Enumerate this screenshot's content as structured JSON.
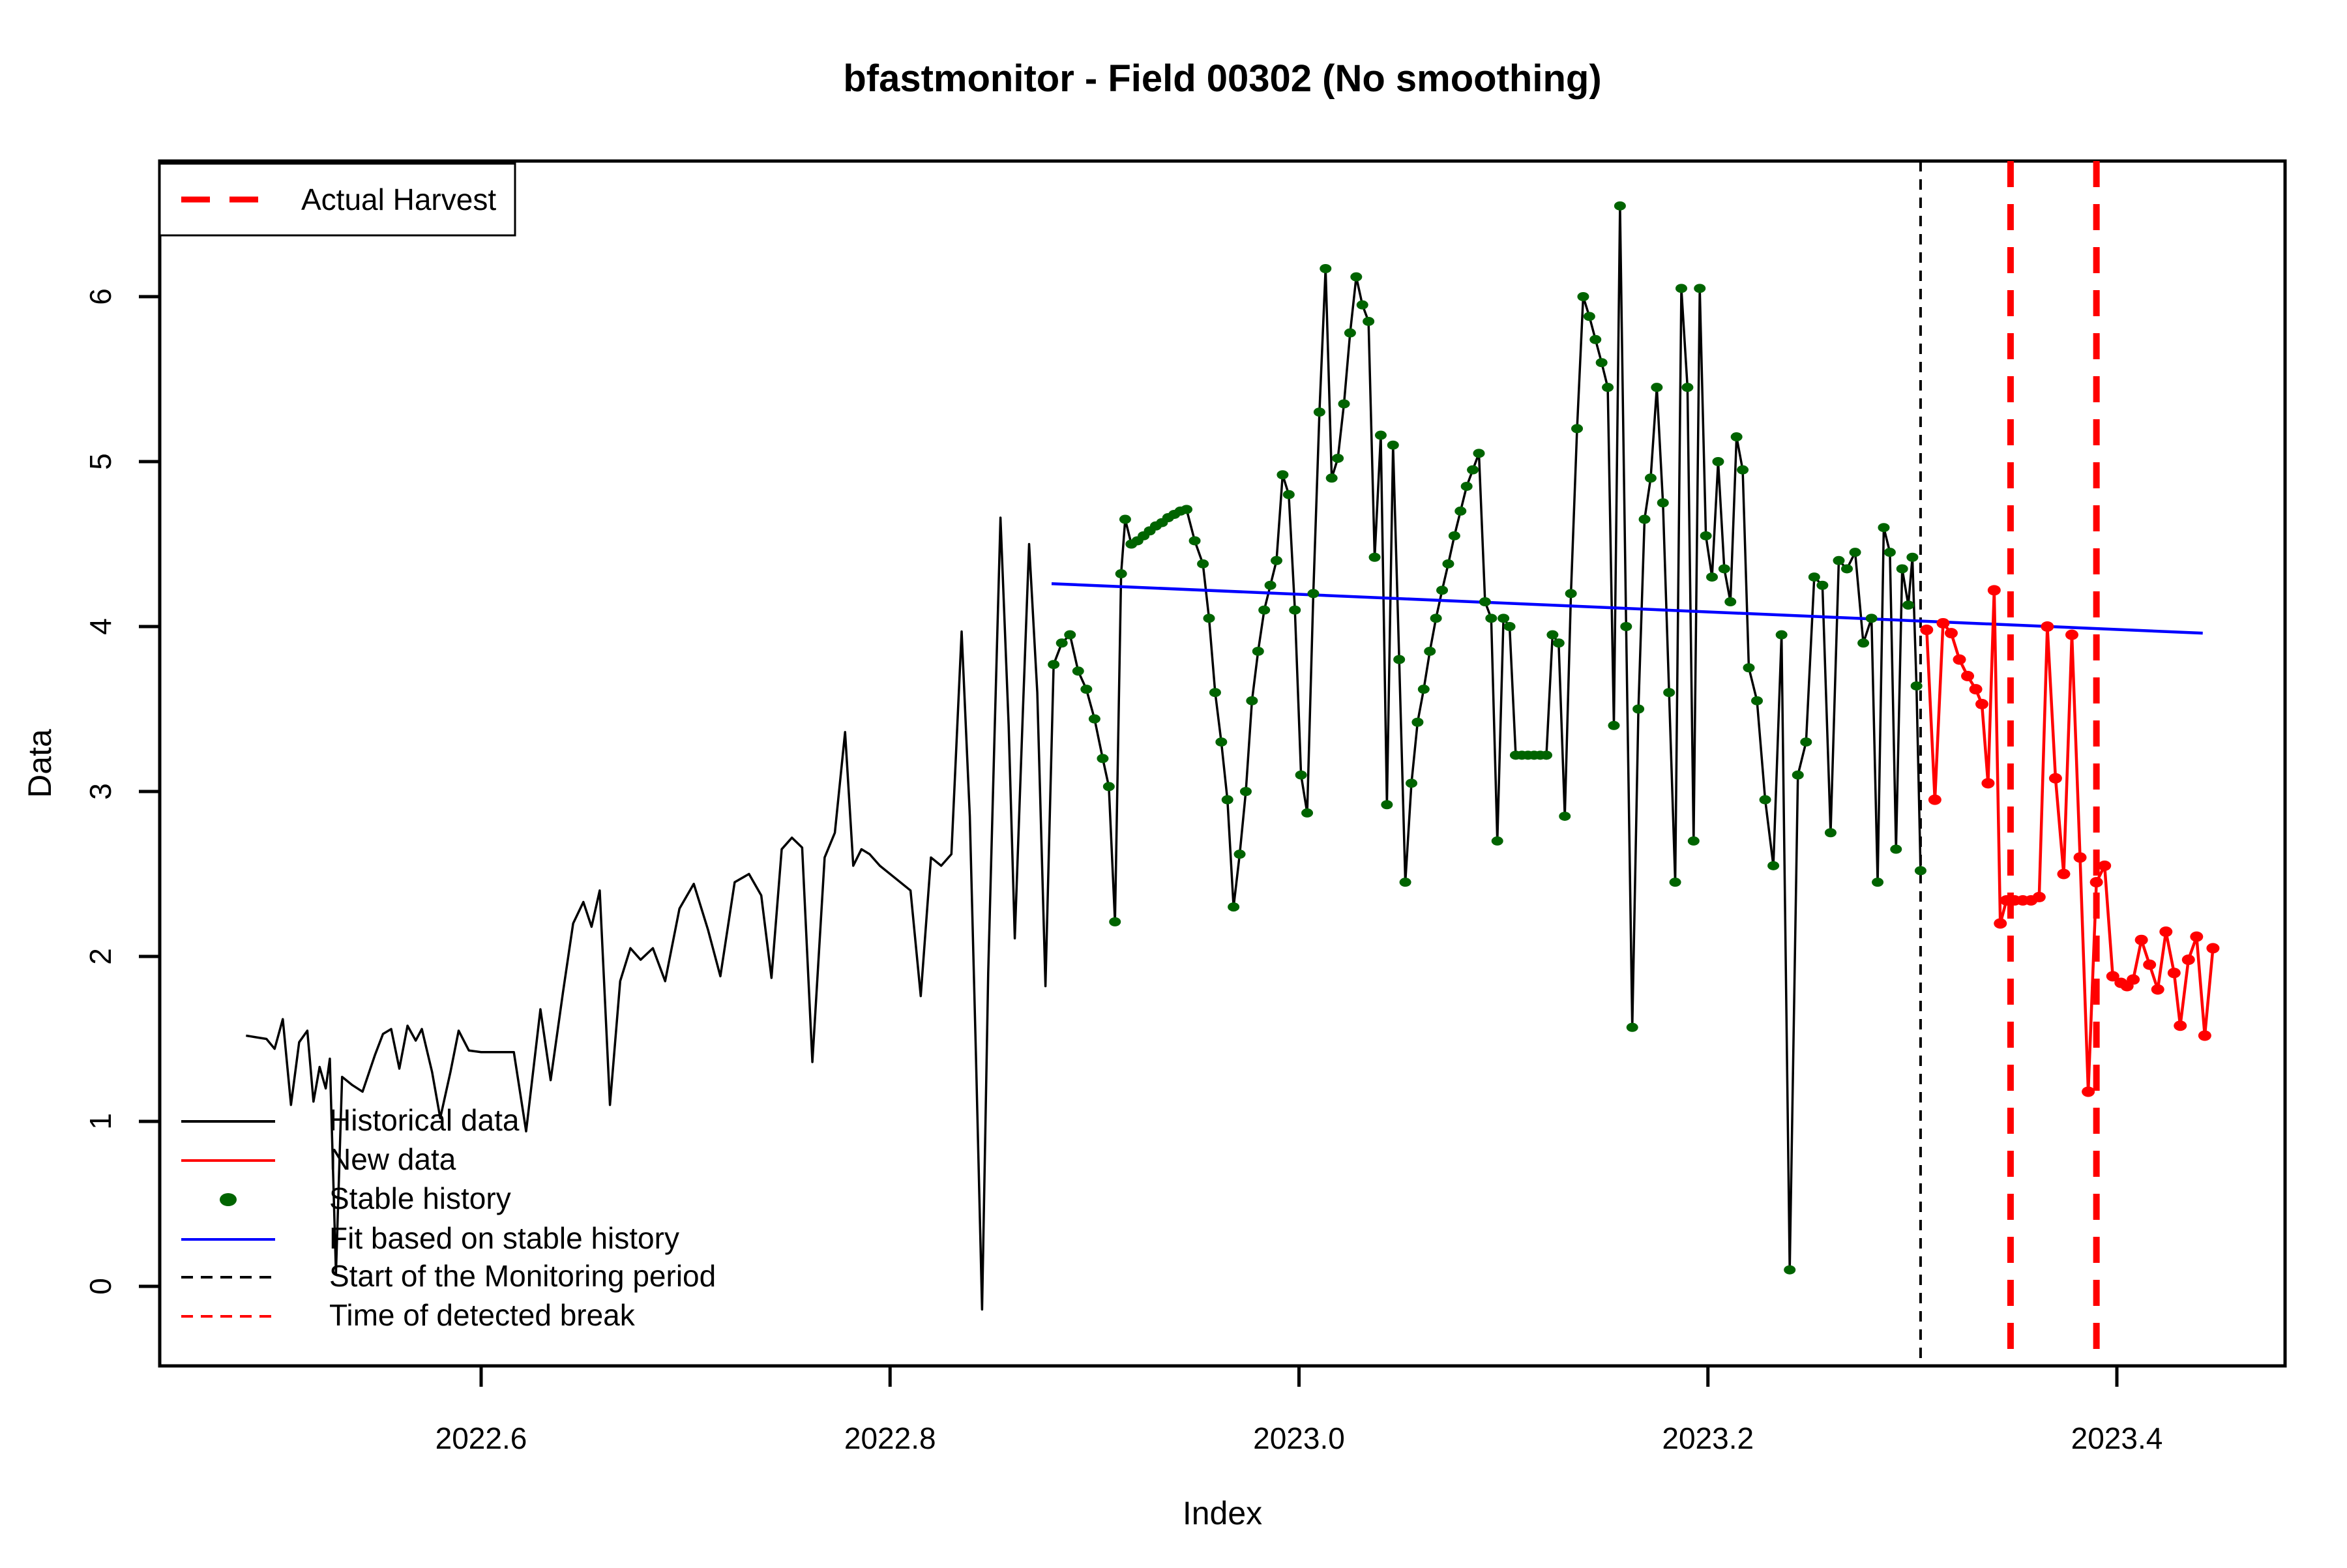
{
  "chart_data": {
    "type": "line",
    "title": "bfastmonitor - Field 00302 (No smoothing)",
    "xlabel": "Index",
    "ylabel": "Data",
    "xlim": [
      2022.443,
      2023.482
    ],
    "ylim": [
      -0.48,
      6.82
    ],
    "x_ticks": {
      "values": [
        2022.6,
        2022.8,
        2023.0,
        2023.2,
        2023.4
      ],
      "labels": [
        "2022.6",
        "2022.8",
        "2023.0",
        "2023.2",
        "2023.4"
      ]
    },
    "y_ticks": {
      "values": [
        0,
        1,
        2,
        3,
        4,
        5,
        6
      ],
      "labels": [
        "0",
        "1",
        "2",
        "3",
        "4",
        "5",
        "6"
      ]
    },
    "grid": "off",
    "colors": {
      "historical": "#000000",
      "new_data": "#FF0000",
      "stable_history": "#006400",
      "fit": "#0000FF",
      "monitor_start": "#000000",
      "detected_break": "#FF0000"
    },
    "stable_history_start_x": 2022.879,
    "monitor_start_x": 2023.304,
    "harvest_lines_x": [
      2023.348,
      2023.39
    ],
    "fit_line": {
      "x": [
        2022.879,
        2023.442
      ],
      "y": [
        4.26,
        3.96
      ]
    },
    "series": [
      {
        "name": "Historical data",
        "type": "line",
        "points": [
          [
            2022.485,
            1.52
          ],
          [
            2022.49,
            1.51
          ],
          [
            2022.495,
            1.5
          ],
          [
            2022.499,
            1.44
          ],
          [
            2022.503,
            1.62
          ],
          [
            2022.507,
            1.1
          ],
          [
            2022.511,
            1.48
          ],
          [
            2022.515,
            1.55
          ],
          [
            2022.518,
            1.12
          ],
          [
            2022.521,
            1.33
          ],
          [
            2022.524,
            1.2
          ],
          [
            2022.526,
            1.38
          ],
          [
            2022.529,
            0.08
          ],
          [
            2022.532,
            1.27
          ],
          [
            2022.537,
            1.22
          ],
          [
            2022.542,
            1.18
          ],
          [
            2022.548,
            1.4
          ],
          [
            2022.552,
            1.53
          ],
          [
            2022.556,
            1.56
          ],
          [
            2022.56,
            1.32
          ],
          [
            2022.564,
            1.58
          ],
          [
            2022.568,
            1.49
          ],
          [
            2022.571,
            1.56
          ],
          [
            2022.576,
            1.3
          ],
          [
            2022.58,
            1.02
          ],
          [
            2022.585,
            1.3
          ],
          [
            2022.589,
            1.55
          ],
          [
            2022.594,
            1.43
          ],
          [
            2022.6,
            1.42
          ],
          [
            2022.608,
            1.42
          ],
          [
            2022.616,
            1.42
          ],
          [
            2022.622,
            0.94
          ],
          [
            2022.629,
            1.68
          ],
          [
            2022.634,
            1.25
          ],
          [
            2022.64,
            1.78
          ],
          [
            2022.645,
            2.2
          ],
          [
            2022.65,
            2.33
          ],
          [
            2022.654,
            2.18
          ],
          [
            2022.658,
            2.4
          ],
          [
            2022.663,
            1.1
          ],
          [
            2022.668,
            1.85
          ],
          [
            2022.673,
            2.05
          ],
          [
            2022.678,
            1.98
          ],
          [
            2022.684,
            2.05
          ],
          [
            2022.69,
            1.85
          ],
          [
            2022.697,
            2.29
          ],
          [
            2022.704,
            2.44
          ],
          [
            2022.711,
            2.16
          ],
          [
            2022.717,
            1.88
          ],
          [
            2022.724,
            2.45
          ],
          [
            2022.731,
            2.5
          ],
          [
            2022.737,
            2.37
          ],
          [
            2022.742,
            1.87
          ],
          [
            2022.747,
            2.65
          ],
          [
            2022.752,
            2.72
          ],
          [
            2022.757,
            2.66
          ],
          [
            2022.762,
            1.36
          ],
          [
            2022.768,
            2.6
          ],
          [
            2022.773,
            2.75
          ],
          [
            2022.778,
            3.36
          ],
          [
            2022.782,
            2.55
          ],
          [
            2022.786,
            2.65
          ],
          [
            2022.79,
            2.62
          ],
          [
            2022.795,
            2.55
          ],
          [
            2022.802,
            2.48
          ],
          [
            2022.81,
            2.4
          ],
          [
            2022.815,
            1.76
          ],
          [
            2022.82,
            2.6
          ],
          [
            2022.825,
            2.55
          ],
          [
            2022.83,
            2.62
          ],
          [
            2022.835,
            3.97
          ],
          [
            2022.839,
            2.85
          ],
          [
            2022.842,
            1.4
          ],
          [
            2022.845,
            -0.14
          ],
          [
            2022.848,
            1.9
          ],
          [
            2022.851,
            3.3
          ],
          [
            2022.854,
            4.66
          ],
          [
            2022.858,
            3.4
          ],
          [
            2022.861,
            2.11
          ],
          [
            2022.865,
            3.5
          ],
          [
            2022.868,
            4.5
          ],
          [
            2022.872,
            3.6
          ],
          [
            2022.876,
            1.82
          ],
          [
            2022.88,
            3.77
          ],
          [
            2022.884,
            3.9
          ],
          [
            2022.888,
            3.95
          ],
          [
            2022.892,
            3.73
          ],
          [
            2022.896,
            3.62
          ],
          [
            2022.9,
            3.44
          ],
          [
            2022.904,
            3.2
          ],
          [
            2022.907,
            3.03
          ],
          [
            2022.91,
            2.21
          ],
          [
            2022.913,
            4.32
          ],
          [
            2022.915,
            4.65
          ],
          [
            2022.918,
            4.5
          ],
          [
            2022.921,
            4.52
          ],
          [
            2022.924,
            4.55
          ],
          [
            2022.927,
            4.58
          ],
          [
            2022.93,
            4.61
          ],
          [
            2022.933,
            4.63
          ],
          [
            2022.936,
            4.66
          ],
          [
            2022.939,
            4.68
          ],
          [
            2022.942,
            4.7
          ],
          [
            2022.945,
            4.71
          ],
          [
            2022.949,
            4.52
          ],
          [
            2022.953,
            4.38
          ],
          [
            2022.956,
            4.05
          ],
          [
            2022.959,
            3.6
          ],
          [
            2022.962,
            3.3
          ],
          [
            2022.965,
            2.95
          ],
          [
            2022.968,
            2.3
          ],
          [
            2022.971,
            2.62
          ],
          [
            2022.974,
            3.0
          ],
          [
            2022.977,
            3.55
          ],
          [
            2022.98,
            3.85
          ],
          [
            2022.983,
            4.1
          ],
          [
            2022.986,
            4.25
          ],
          [
            2022.989,
            4.4
          ],
          [
            2022.992,
            4.92
          ],
          [
            2022.995,
            4.8
          ],
          [
            2022.998,
            4.1
          ],
          [
            2023.001,
            3.1
          ],
          [
            2023.004,
            2.87
          ],
          [
            2023.007,
            4.2
          ],
          [
            2023.01,
            5.3
          ],
          [
            2023.013,
            6.17
          ],
          [
            2023.016,
            4.9
          ],
          [
            2023.019,
            5.02
          ],
          [
            2023.022,
            5.35
          ],
          [
            2023.025,
            5.78
          ],
          [
            2023.028,
            6.12
          ],
          [
            2023.031,
            5.95
          ],
          [
            2023.034,
            5.85
          ],
          [
            2023.037,
            4.42
          ],
          [
            2023.04,
            5.16
          ],
          [
            2023.043,
            2.92
          ],
          [
            2023.046,
            5.1
          ],
          [
            2023.049,
            3.8
          ],
          [
            2023.052,
            2.45
          ],
          [
            2023.055,
            3.05
          ],
          [
            2023.058,
            3.42
          ],
          [
            2023.061,
            3.62
          ],
          [
            2023.064,
            3.85
          ],
          [
            2023.067,
            4.05
          ],
          [
            2023.07,
            4.22
          ],
          [
            2023.073,
            4.38
          ],
          [
            2023.076,
            4.55
          ],
          [
            2023.079,
            4.7
          ],
          [
            2023.082,
            4.85
          ],
          [
            2023.085,
            4.95
          ],
          [
            2023.088,
            5.05
          ],
          [
            2023.091,
            4.15
          ],
          [
            2023.094,
            4.05
          ],
          [
            2023.097,
            2.7
          ],
          [
            2023.1,
            4.05
          ],
          [
            2023.103,
            4.0
          ],
          [
            2023.106,
            3.22
          ],
          [
            2023.109,
            3.22
          ],
          [
            2023.112,
            3.22
          ],
          [
            2023.115,
            3.22
          ],
          [
            2023.118,
            3.22
          ],
          [
            2023.121,
            3.22
          ],
          [
            2023.124,
            3.95
          ],
          [
            2023.127,
            3.9
          ],
          [
            2023.13,
            2.85
          ],
          [
            2023.133,
            4.2
          ],
          [
            2023.136,
            5.2
          ],
          [
            2023.139,
            6.0
          ],
          [
            2023.142,
            5.88
          ],
          [
            2023.145,
            5.74
          ],
          [
            2023.148,
            5.6
          ],
          [
            2023.151,
            5.45
          ],
          [
            2023.154,
            3.4
          ],
          [
            2023.157,
            6.55
          ],
          [
            2023.16,
            4.0
          ],
          [
            2023.163,
            1.57
          ],
          [
            2023.166,
            3.5
          ],
          [
            2023.169,
            4.65
          ],
          [
            2023.172,
            4.9
          ],
          [
            2023.175,
            5.45
          ],
          [
            2023.178,
            4.75
          ],
          [
            2023.181,
            3.6
          ],
          [
            2023.184,
            2.45
          ],
          [
            2023.187,
            6.05
          ],
          [
            2023.19,
            5.45
          ],
          [
            2023.193,
            2.7
          ],
          [
            2023.196,
            6.05
          ],
          [
            2023.199,
            4.55
          ],
          [
            2023.202,
            4.3
          ],
          [
            2023.205,
            5.0
          ],
          [
            2023.208,
            4.35
          ],
          [
            2023.211,
            4.15
          ],
          [
            2023.214,
            5.15
          ],
          [
            2023.217,
            4.95
          ],
          [
            2023.22,
            3.75
          ],
          [
            2023.224,
            3.55
          ],
          [
            2023.228,
            2.95
          ],
          [
            2023.232,
            2.55
          ],
          [
            2023.236,
            3.95
          ],
          [
            2023.24,
            0.1
          ],
          [
            2023.244,
            3.1
          ],
          [
            2023.248,
            3.3
          ],
          [
            2023.252,
            4.3
          ],
          [
            2023.256,
            4.25
          ],
          [
            2023.26,
            2.75
          ],
          [
            2023.264,
            4.4
          ],
          [
            2023.268,
            4.35
          ],
          [
            2023.272,
            4.45
          ],
          [
            2023.276,
            3.9
          ],
          [
            2023.28,
            4.05
          ],
          [
            2023.283,
            2.45
          ],
          [
            2023.286,
            4.6
          ],
          [
            2023.289,
            4.45
          ],
          [
            2023.292,
            2.65
          ],
          [
            2023.295,
            4.35
          ],
          [
            2023.298,
            4.13
          ],
          [
            2023.3,
            4.42
          ],
          [
            2023.302,
            3.64
          ],
          [
            2023.304,
            2.52
          ]
        ]
      },
      {
        "name": "New data",
        "type": "line+dots",
        "points": [
          [
            2023.307,
            3.98
          ],
          [
            2023.311,
            2.95
          ],
          [
            2023.315,
            4.02
          ],
          [
            2023.319,
            3.96
          ],
          [
            2023.323,
            3.8
          ],
          [
            2023.327,
            3.7
          ],
          [
            2023.331,
            3.62
          ],
          [
            2023.334,
            3.53
          ],
          [
            2023.337,
            3.05
          ],
          [
            2023.34,
            4.22
          ],
          [
            2023.343,
            2.2
          ],
          [
            2023.346,
            2.34
          ],
          [
            2023.35,
            2.34
          ],
          [
            2023.354,
            2.34
          ],
          [
            2023.358,
            2.34
          ],
          [
            2023.362,
            2.36
          ],
          [
            2023.366,
            4.0
          ],
          [
            2023.37,
            3.08
          ],
          [
            2023.374,
            2.5
          ],
          [
            2023.378,
            3.95
          ],
          [
            2023.382,
            2.6
          ],
          [
            2023.386,
            1.18
          ],
          [
            2023.39,
            2.45
          ],
          [
            2023.394,
            2.55
          ],
          [
            2023.398,
            1.88
          ],
          [
            2023.402,
            1.84
          ],
          [
            2023.405,
            1.82
          ],
          [
            2023.408,
            1.86
          ],
          [
            2023.412,
            2.1
          ],
          [
            2023.416,
            1.95
          ],
          [
            2023.42,
            1.8
          ],
          [
            2023.424,
            2.15
          ],
          [
            2023.428,
            1.9
          ],
          [
            2023.431,
            1.58
          ],
          [
            2023.435,
            1.98
          ],
          [
            2023.439,
            2.12
          ],
          [
            2023.443,
            1.52
          ],
          [
            2023.447,
            2.05
          ]
        ]
      }
    ],
    "legend_top": {
      "items": [
        {
          "label": "Actual Harvest",
          "swatch": "dashed",
          "color": "#FF0000"
        }
      ]
    },
    "legend_bottom": {
      "items": [
        {
          "label": "Historical data",
          "swatch": "line",
          "color": "#000000"
        },
        {
          "label": "New data",
          "swatch": "line",
          "color": "#FF0000"
        },
        {
          "label": "Stable history",
          "swatch": "dot",
          "color": "#006400"
        },
        {
          "label": "Fit based on stable history",
          "swatch": "line",
          "color": "#0000FF"
        },
        {
          "label": "Start of the Monitoring period",
          "swatch": "dashed",
          "color": "#000000"
        },
        {
          "label": "Time of detected break",
          "swatch": "dashed",
          "color": "#FF0000"
        }
      ]
    }
  }
}
